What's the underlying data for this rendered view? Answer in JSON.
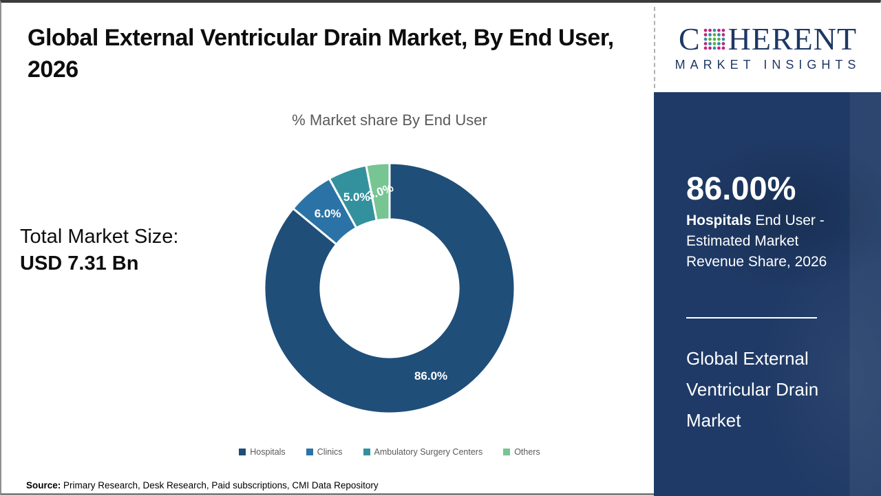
{
  "header": {
    "title": "Global External Ventricular Drain Market, By End User, 2026"
  },
  "logo": {
    "prefix": "C",
    "suffix": "HERENT",
    "subtitle": "MARKET INSIGHTS"
  },
  "total_market": {
    "label": "Total Market Size:",
    "value": "USD 7.31 Bn"
  },
  "sidebar": {
    "stat_value": "86.00%",
    "stat_desc_bold": "Hospitals",
    "stat_desc_rest": " End User - Estimated Market Revenue Share, 2026",
    "market_name": "Global External Ventricular Drain Market"
  },
  "footer": {
    "source_label": "Source:",
    "source_text": " Primary Research, Desk Research, Paid subscriptions, CMI Data Repository"
  },
  "chart_data": {
    "type": "pie",
    "subtype": "donut",
    "title": "% Market share By End User",
    "categories": [
      "Hospitals",
      "Clinics",
      "Ambulatory Surgery Centers",
      "Others"
    ],
    "values": [
      86.0,
      6.0,
      5.0,
      3.0
    ],
    "labels": [
      "86.0%",
      "6.0%",
      "5.0%",
      "3.0%"
    ],
    "colors": [
      "#1F4E79",
      "#2B73A6",
      "#33919D",
      "#76C593"
    ],
    "label_rotations": [
      0,
      0,
      0,
      -20
    ],
    "donut_hole_ratio": 0.55,
    "start_angle_deg": 0,
    "direction": "clockwise",
    "legend_position": "bottom",
    "slice_border_color": "#FFFFFF"
  },
  "logo_colors": {
    "navy": "#1E3864",
    "dot_green": "#55B04A",
    "dot_teal": "#2E8FA3",
    "dot_magenta": "#C0267A"
  }
}
